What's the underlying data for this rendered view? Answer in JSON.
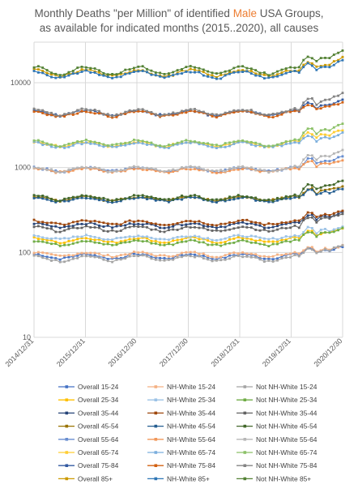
{
  "chart_data": {
    "type": "line",
    "title": {
      "line1_before": "Monthly Deaths \"per Million\" of identified ",
      "line1_highlight": "Male",
      "line1_after": " USA Groups,",
      "line2": "as available for indicated months (2015..2020), all causes",
      "highlight_color": "#ed7d31"
    },
    "xlabel": "",
    "ylabel": "",
    "x_tick_labels": [
      "2014/12/31",
      "2015/12/31",
      "2016/12/30",
      "2017/12/30",
      "2018/12/31",
      "2019/12/31",
      "2020/12/30"
    ],
    "y_tick_labels": [
      "10",
      "100",
      "1000",
      "10000"
    ],
    "y_scale": "log",
    "ylim": [
      10,
      30000
    ],
    "x_range": [
      "2015-01",
      "2020-12"
    ],
    "grid": "horizontal and vertical",
    "legend_position": "bottom",
    "months": 72,
    "series": [
      {
        "name": "Overall 15-24",
        "color": "#4472c4",
        "marker": "square",
        "base": 90,
        "amp": 0.06,
        "rise2020": 1.25
      },
      {
        "name": "NH-White 15-24",
        "color": "#f4b183",
        "marker": "square",
        "base": 95,
        "amp": 0.05,
        "rise2020": 1.2
      },
      {
        "name": "Not NH-White 15-24",
        "color": "#a5a5a5",
        "marker": "square",
        "base": 85,
        "amp": 0.07,
        "rise2020": 1.35
      },
      {
        "name": "Overall 25-34",
        "color": "#ffc000",
        "marker": "square",
        "base": 140,
        "amp": 0.06,
        "rise2020": 1.3
      },
      {
        "name": "NH-White 25-34",
        "color": "#9dc3e6",
        "marker": "square",
        "base": 150,
        "amp": 0.05,
        "rise2020": 1.3
      },
      {
        "name": "Not NH-White 25-34",
        "color": "#70ad47",
        "marker": "square",
        "base": 130,
        "amp": 0.06,
        "rise2020": 1.4
      },
      {
        "name": "Overall 35-44",
        "color": "#264478",
        "marker": "square",
        "base": 210,
        "amp": 0.05,
        "rise2020": 1.35
      },
      {
        "name": "NH-White 35-44",
        "color": "#9e480e",
        "marker": "square",
        "base": 225,
        "amp": 0.05,
        "rise2020": 1.3
      },
      {
        "name": "Not NH-White 35-44",
        "color": "#636363",
        "marker": "square",
        "base": 190,
        "amp": 0.06,
        "rise2020": 1.45
      },
      {
        "name": "Overall 45-54",
        "color": "#997300",
        "marker": "square",
        "base": 430,
        "amp": 0.05,
        "rise2020": 1.35
      },
      {
        "name": "NH-White 45-54",
        "color": "#255e91",
        "marker": "square",
        "base": 420,
        "amp": 0.05,
        "rise2020": 1.3
      },
      {
        "name": "Not NH-White 45-54",
        "color": "#43682b",
        "marker": "square",
        "base": 440,
        "amp": 0.06,
        "rise2020": 1.5
      },
      {
        "name": "Overall 55-64",
        "color": "#698ed0",
        "marker": "square",
        "base": 950,
        "amp": 0.05,
        "rise2020": 1.35
      },
      {
        "name": "NH-White 55-64",
        "color": "#f1975a",
        "marker": "square",
        "base": 930,
        "amp": 0.05,
        "rise2020": 1.25
      },
      {
        "name": "Not NH-White 55-64",
        "color": "#b7b7b7",
        "marker": "square",
        "base": 960,
        "amp": 0.06,
        "rise2020": 1.55
      },
      {
        "name": "Overall 65-74",
        "color": "#ffcd33",
        "marker": "square",
        "base": 1900,
        "amp": 0.06,
        "rise2020": 1.4
      },
      {
        "name": "NH-White 65-74",
        "color": "#7cafdd",
        "marker": "square",
        "base": 1850,
        "amp": 0.06,
        "rise2020": 1.3
      },
      {
        "name": "Not NH-White 65-74",
        "color": "#8cc168",
        "marker": "square",
        "base": 1950,
        "amp": 0.07,
        "rise2020": 1.6
      },
      {
        "name": "Overall 75-84",
        "color": "#335aa1",
        "marker": "square",
        "base": 4400,
        "amp": 0.07,
        "rise2020": 1.35
      },
      {
        "name": "NH-White 75-84",
        "color": "#d26012",
        "marker": "square",
        "base": 4300,
        "amp": 0.07,
        "rise2020": 1.3
      },
      {
        "name": "Not NH-White 75-84",
        "color": "#848484",
        "marker": "square",
        "base": 4500,
        "amp": 0.08,
        "rise2020": 1.55
      },
      {
        "name": "Overall 85+",
        "color": "#cc9a00",
        "marker": "square",
        "base": 13000,
        "amp": 0.09,
        "rise2020": 1.4
      },
      {
        "name": "NH-White 85+",
        "color": "#2f76b5",
        "marker": "square",
        "base": 12500,
        "amp": 0.09,
        "rise2020": 1.35
      },
      {
        "name": "Not NH-White 85+",
        "color": "#548235",
        "marker": "square",
        "base": 14000,
        "amp": 0.1,
        "rise2020": 1.6
      }
    ]
  }
}
